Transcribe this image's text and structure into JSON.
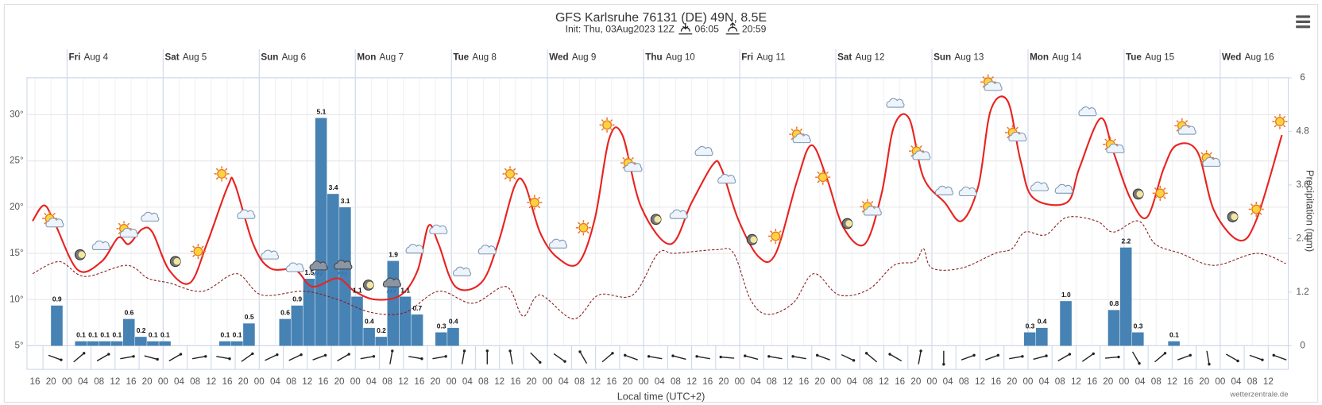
{
  "chart_data": {
    "type": "line",
    "title": "GFS Karlsruhe 76131 (DE) 49N, 8.5E",
    "subtitle": "Init: Thu, 03Aug2023 12Z",
    "sunrise": "06:05",
    "sunset": "20:59",
    "x_label": "Local time (UTC+2)",
    "y2_label": "Precipitation (mm)",
    "credit": "wetterzentrale.de",
    "xlim": [
      14,
      329
    ],
    "xticks": [
      16,
      20,
      {
        "value": 24,
        "label": "00"
      },
      {
        "value": 28,
        "label": "04"
      },
      {
        "value": 32,
        "label": "08"
      },
      {
        "value": 36,
        "label": "12"
      },
      {
        "value": 40,
        "label": "16"
      },
      {
        "value": 44,
        "label": "20"
      },
      {
        "value": 48,
        "label": "00"
      },
      {
        "value": 52,
        "label": "04"
      },
      {
        "value": 56,
        "label": "08"
      },
      {
        "value": 60,
        "label": "12"
      },
      {
        "value": 64,
        "label": "16"
      },
      {
        "value": 68,
        "label": "20"
      },
      {
        "value": 72,
        "label": "00"
      },
      {
        "value": 76,
        "label": "04"
      },
      {
        "value": 80,
        "label": "08"
      },
      {
        "value": 84,
        "label": "12"
      },
      {
        "value": 88,
        "label": "16"
      },
      {
        "value": 92,
        "label": "20"
      },
      {
        "value": 96,
        "label": "00"
      },
      {
        "value": 100,
        "label": "04"
      },
      {
        "value": 104,
        "label": "08"
      },
      {
        "value": 108,
        "label": "12"
      },
      {
        "value": 112,
        "label": "16"
      },
      {
        "value": 116,
        "label": "20"
      },
      {
        "value": 120,
        "label": "00"
      },
      {
        "value": 124,
        "label": "04"
      },
      {
        "value": 128,
        "label": "08"
      },
      {
        "value": 132,
        "label": "12"
      },
      {
        "value": 136,
        "label": "16"
      },
      {
        "value": 140,
        "label": "20"
      },
      {
        "value": 144,
        "label": "00"
      },
      {
        "value": 148,
        "label": "04"
      },
      {
        "value": 152,
        "label": "08"
      },
      {
        "value": 156,
        "label": "12"
      },
      {
        "value": 160,
        "label": "16"
      },
      {
        "value": 164,
        "label": "20"
      },
      {
        "value": 168,
        "label": "00"
      },
      {
        "value": 172,
        "label": "04"
      },
      {
        "value": 176,
        "label": "08"
      },
      {
        "value": 180,
        "label": "12"
      },
      {
        "value": 184,
        "label": "16"
      },
      {
        "value": 188,
        "label": "20"
      },
      {
        "value": 192,
        "label": "00"
      },
      {
        "value": 196,
        "label": "04"
      },
      {
        "value": 200,
        "label": "08"
      },
      {
        "value": 204,
        "label": "12"
      },
      {
        "value": 208,
        "label": "16"
      },
      {
        "value": 212,
        "label": "20"
      },
      {
        "value": 216,
        "label": "00"
      },
      {
        "value": 220,
        "label": "04"
      },
      {
        "value": 224,
        "label": "08"
      },
      {
        "value": 228,
        "label": "12"
      },
      {
        "value": 232,
        "label": "16"
      },
      {
        "value": 236,
        "label": "20"
      },
      {
        "value": 240,
        "label": "00"
      },
      {
        "value": 244,
        "label": "04"
      },
      {
        "value": 248,
        "label": "08"
      },
      {
        "value": 252,
        "label": "12"
      },
      {
        "value": 256,
        "label": "16"
      },
      {
        "value": 260,
        "label": "20"
      },
      {
        "value": 264,
        "label": "00"
      },
      {
        "value": 268,
        "label": "04"
      },
      {
        "value": 272,
        "label": "08"
      },
      {
        "value": 276,
        "label": "12"
      },
      {
        "value": 280,
        "label": "16"
      },
      {
        "value": 284,
        "label": "20"
      },
      {
        "value": 288,
        "label": "00"
      },
      {
        "value": 292,
        "label": "04"
      },
      {
        "value": 296,
        "label": "08"
      },
      {
        "value": 300,
        "label": "12"
      },
      {
        "value": 304,
        "label": "16"
      },
      {
        "value": 308,
        "label": "20"
      },
      {
        "value": 312,
        "label": "00"
      },
      {
        "value": 316,
        "label": "04"
      },
      {
        "value": 320,
        "label": "08"
      },
      {
        "value": 324,
        "label": "12"
      }
    ],
    "days": [
      {
        "weekday": "Fri",
        "date": "Aug 4",
        "x": 24
      },
      {
        "weekday": "Sat",
        "date": "Aug 5",
        "x": 48
      },
      {
        "weekday": "Sun",
        "date": "Aug 6",
        "x": 72
      },
      {
        "weekday": "Mon",
        "date": "Aug 7",
        "x": 96
      },
      {
        "weekday": "Tue",
        "date": "Aug 8",
        "x": 120
      },
      {
        "weekday": "Wed",
        "date": "Aug 9",
        "x": 144
      },
      {
        "weekday": "Thu",
        "date": "Aug 10",
        "x": 168
      },
      {
        "weekday": "Fri",
        "date": "Aug 11",
        "x": 192
      },
      {
        "weekday": "Sat",
        "date": "Aug 12",
        "x": 216
      },
      {
        "weekday": "Sun",
        "date": "Aug 13",
        "x": 240
      },
      {
        "weekday": "Mon",
        "date": "Aug 14",
        "x": 264
      },
      {
        "weekday": "Tue",
        "date": "Aug 15",
        "x": 288
      },
      {
        "weekday": "Wed",
        "date": "Aug 16",
        "x": 312
      }
    ],
    "ylim": [
      5,
      34
    ],
    "yticks": [
      {
        "value": 5,
        "label": "5°"
      },
      {
        "value": 10,
        "label": "10°"
      },
      {
        "value": 15,
        "label": "15°"
      },
      {
        "value": 20,
        "label": "20°"
      },
      {
        "value": 25,
        "label": "25°"
      },
      {
        "value": 30,
        "label": "30°"
      }
    ],
    "y2lim": [
      0,
      6
    ],
    "y2ticks": [
      0,
      1.2,
      2.4,
      3.6,
      4.8,
      6
    ],
    "grid": true,
    "series": [
      {
        "type": "bar",
        "axis": "y2",
        "color": "#4682b4",
        "x": [
          20,
          26,
          29,
          32,
          35,
          38,
          41,
          44,
          47,
          62,
          65,
          68,
          77,
          80,
          83,
          86,
          89,
          92,
          95,
          98,
          101,
          104,
          107,
          110,
          116,
          119,
          263,
          266,
          272,
          284,
          287,
          290,
          299
        ],
        "values": [
          0.9,
          0.1,
          0.1,
          0.1,
          0.1,
          0.6,
          0.2,
          0.1,
          0.1,
          0.1,
          0.1,
          0.5,
          0.6,
          0.9,
          1.5,
          5.1,
          3.4,
          3.1,
          1.1,
          0.4,
          0.2,
          1.9,
          1.1,
          0.7,
          0.3,
          0.4,
          0.3,
          0.4,
          1.0,
          0.8,
          2.2,
          0.3,
          0.1
        ],
        "value_labels": [
          "0.9",
          "0.1",
          "0.1",
          "0.1",
          "0.1",
          "0.6",
          "0.2",
          "0.1",
          "0.1",
          "0.1",
          "0.1",
          "0.5",
          "0.6",
          "0.9",
          "1.5",
          "5.1",
          "3.4",
          "3.1",
          "1.1",
          "0.4",
          "0.2",
          "1.9",
          "1.1",
          "0.7",
          "0.3",
          "0.4",
          "0.3",
          "0.4",
          "1.0",
          "0.8",
          "2.2",
          "0.3",
          "0.1"
        ]
      },
      {
        "type": "line",
        "color": "#e8231f",
        "style": "solid",
        "x": [
          15.4,
          18.3,
          21,
          26.7,
          32.6,
          36.8,
          39.4,
          42.7,
          45.3,
          49.5,
          54.7,
          58.9,
          64.2,
          65.9,
          70.5,
          74.7,
          81,
          85.3,
          91.6,
          95.8,
          101,
          107.4,
          111.6,
          114.3,
          116.8,
          121,
          127.4,
          131.6,
          135.8,
          138.3,
          142.1,
          146.3,
          151.6,
          155.8,
          159.4,
          162.7,
          167.4,
          174.7,
          180,
          185.3,
          187.4,
          191.6,
          196.8,
          201,
          206.3,
          209.9,
          213.7,
          217.9,
          223.2,
          227.4,
          230.5,
          234.3,
          237.9,
          243.2,
          247.4,
          251.6,
          254.7,
          258.9,
          262.1,
          265.3,
          273.7,
          276.8,
          282.1,
          285.3,
          289.5,
          293.7,
          297.9,
          301.1,
          306.3,
          310.5,
          316.8,
          321.1,
          327.4
        ],
        "values": [
          18.5,
          20.2,
          18.2,
          13.2,
          14.1,
          16.7,
          16.0,
          17.6,
          17.3,
          13.2,
          11.8,
          16,
          22.3,
          22.5,
          16,
          13.4,
          13.2,
          11.4,
          12.3,
          10.9,
          10,
          10.5,
          13.2,
          18,
          16,
          11.4,
          11.8,
          16,
          22.3,
          22.5,
          17.3,
          14.6,
          13.9,
          18.7,
          27.4,
          27.8,
          20,
          16,
          20.5,
          24.6,
          24.2,
          18.7,
          14.6,
          15,
          22.8,
          26.7,
          23.2,
          17.8,
          16,
          21.4,
          28.7,
          29.6,
          23.2,
          20.5,
          18.5,
          22.3,
          30.5,
          31.5,
          25.1,
          21,
          20.5,
          24.2,
          29.6,
          26,
          21,
          18.9,
          24.2,
          26.7,
          26,
          19.6,
          16.4,
          18.7,
          27.8
        ]
      },
      {
        "type": "line",
        "color": "#8b1a1a",
        "style": "dashed",
        "x": [
          15.4,
          22.1,
          28.4,
          38.9,
          44.2,
          49.5,
          57.9,
          66.3,
          72.6,
          83.2,
          91.6,
          100,
          108.4,
          116.8,
          125.3,
          133.7,
          137.9,
          142.1,
          150.5,
          156.8,
          165.3,
          171.6,
          175.8,
          186.3,
          190.5,
          194.7,
          199,
          205.3,
          210.5,
          216.8,
          224.2,
          230.5,
          235.8,
          237.9,
          240,
          247.4,
          255.8,
          260,
          263.2,
          268.4,
          273.7,
          281.1,
          285.3,
          291.6,
          295.8,
          302.1,
          310.5,
          321.1,
          328.4
        ],
        "values": [
          12.8,
          14.1,
          12.5,
          13.7,
          12.3,
          11.8,
          10.9,
          12.8,
          10.5,
          10.9,
          10,
          8.6,
          8.6,
          10.9,
          9.6,
          11.4,
          8.2,
          10.5,
          7.9,
          10.5,
          10.5,
          15,
          15,
          15.4,
          15,
          10,
          8.4,
          9.6,
          12.8,
          10.5,
          11.1,
          13.7,
          14.1,
          15.5,
          13.4,
          13.4,
          15,
          15.5,
          17.3,
          17,
          18.9,
          18.5,
          17.3,
          18.5,
          16,
          15,
          13.7,
          15,
          13.9
        ]
      }
    ]
  }
}
